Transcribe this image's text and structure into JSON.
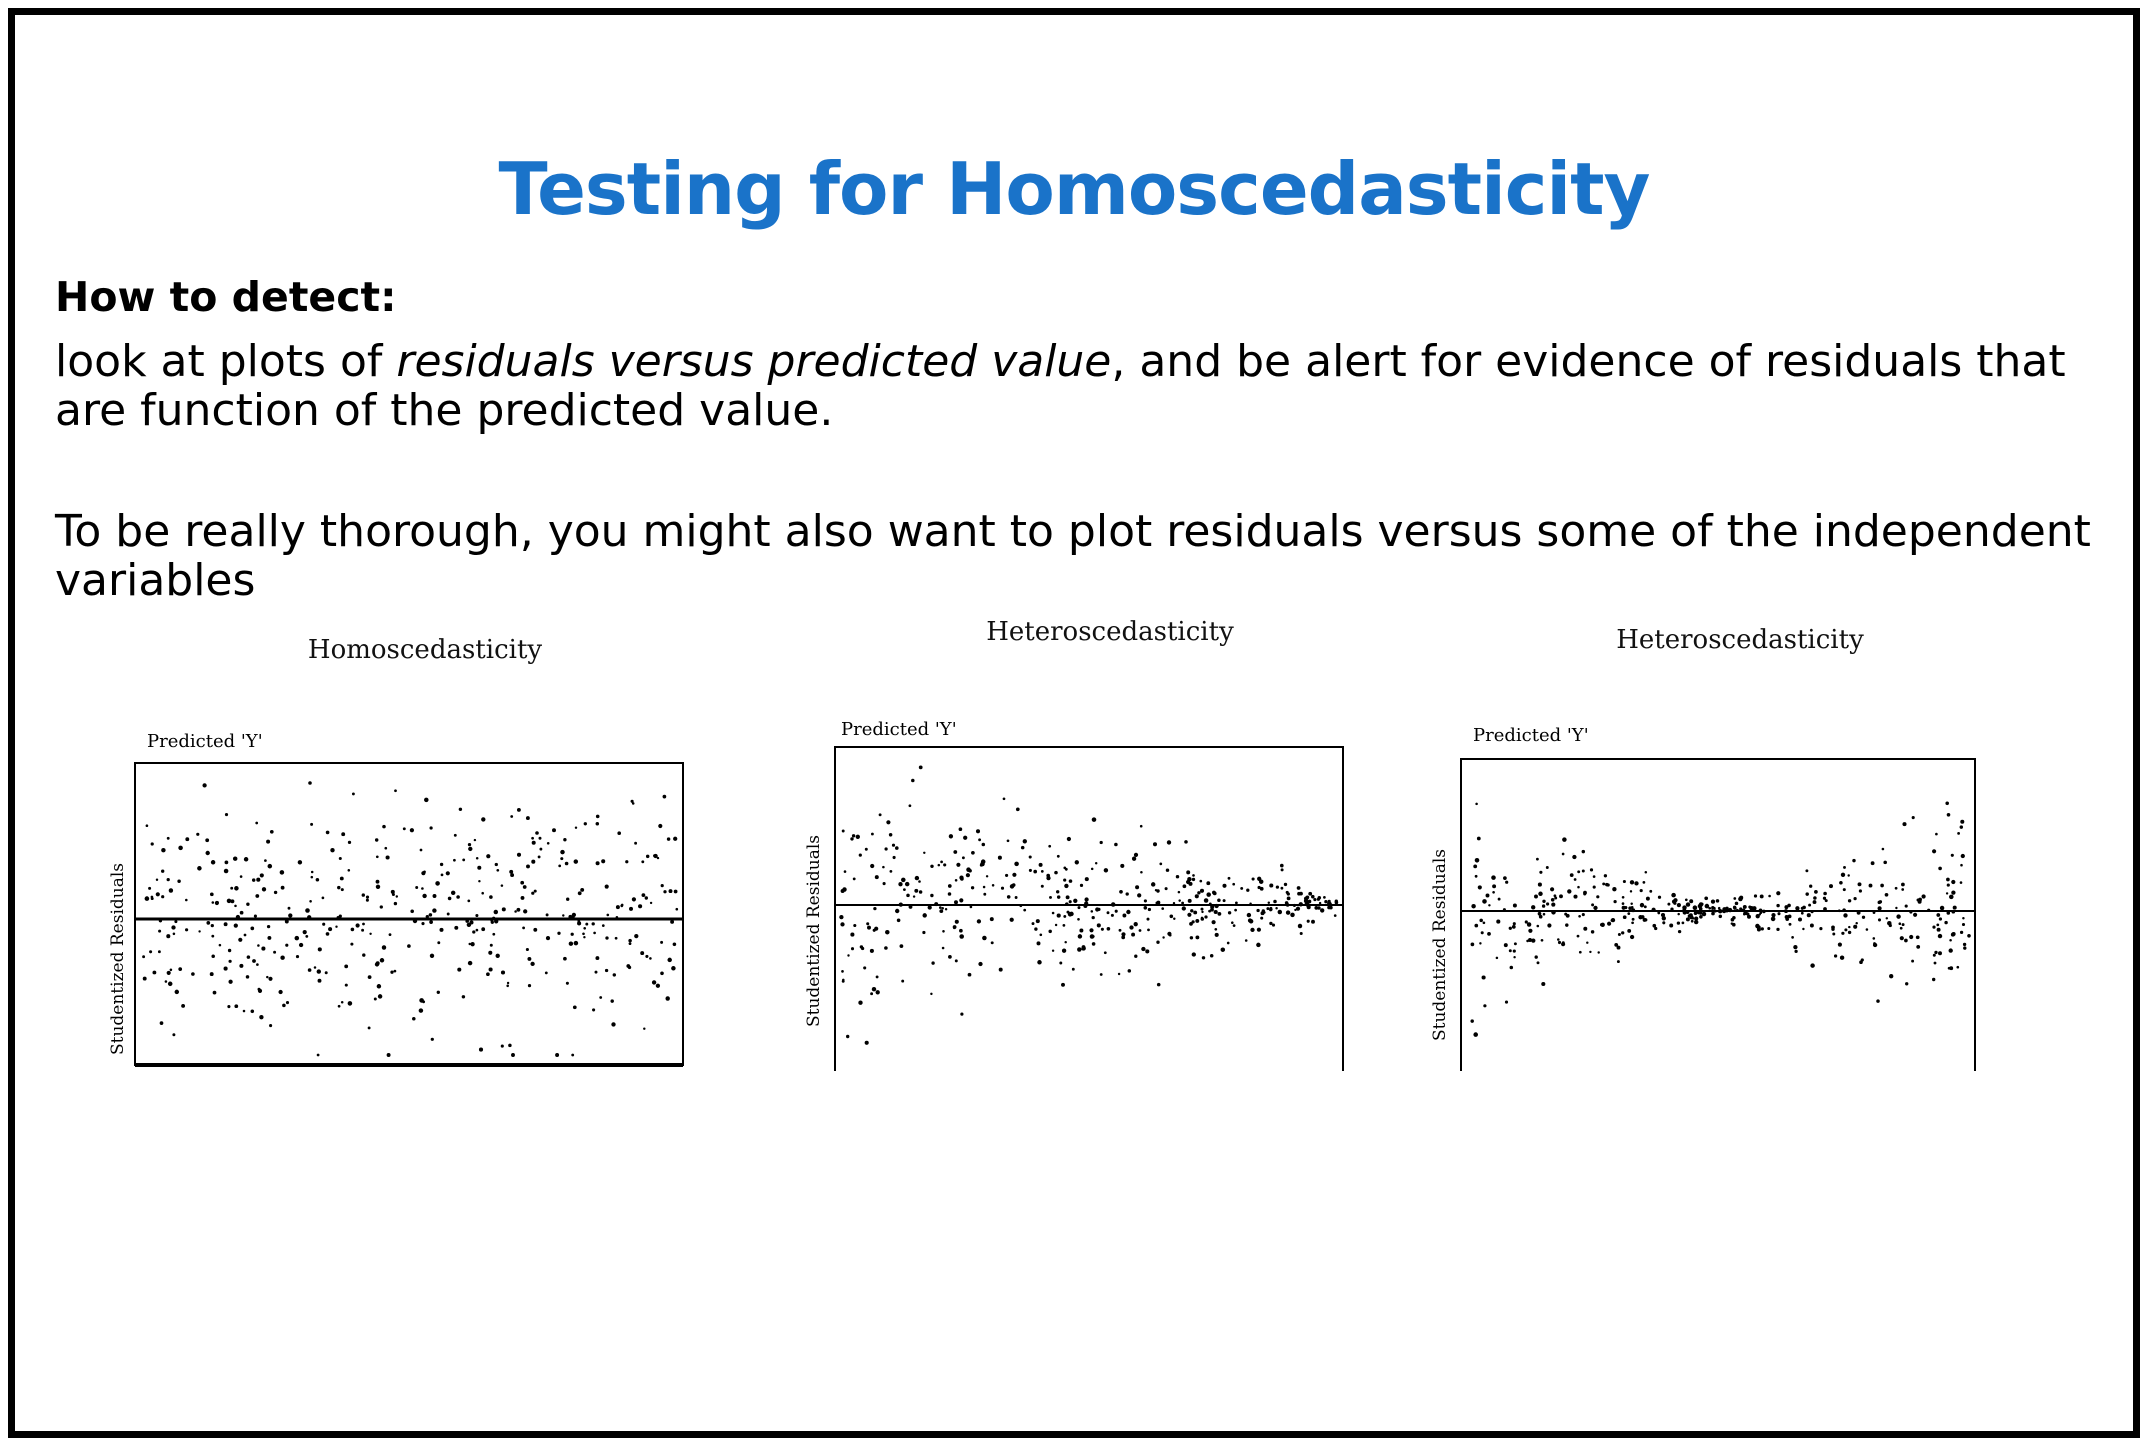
{
  "slide": {
    "title": "Testing for Homoscedasticity",
    "title_color": "#1a73c9",
    "heading": "How to detect:",
    "paragraph1": {
      "prefix": "look at plots of ",
      "emphasis": "residuals versus predicted value",
      "suffix": ", and be alert for evidence of residuals that are  function of the predicted value."
    },
    "paragraph2": "To be really thorough, you might also want to plot residuals versus some of the independent variables"
  },
  "chart_data": [
    {
      "type": "scatter",
      "pattern": "constant-spread",
      "title": "Homoscedasticity",
      "xlabel": "Predicted 'Y'",
      "ylabel": "Studentized Residuals",
      "reference_line": 0,
      "xlim": [
        0,
        1
      ],
      "ylim": [
        -1,
        1
      ],
      "grid": false,
      "frame": "full-box",
      "n_points": 420
    },
    {
      "type": "scatter",
      "pattern": "funnel-narrowing",
      "title": "Heteroscedasticity",
      "xlabel": "Predicted 'Y'",
      "ylabel": "Studentized Residuals",
      "reference_line": 0,
      "xlim": [
        0,
        1
      ],
      "ylim": [
        -1,
        1
      ],
      "grid": false,
      "frame": "open-bottom",
      "n_points": 420
    },
    {
      "type": "scatter",
      "pattern": "bowtie",
      "title": "Heteroscedasticity",
      "xlabel": "Predicted 'Y'",
      "ylabel": "Studentized Residuals",
      "reference_line": 0,
      "xlim": [
        0,
        1
      ],
      "ylim": [
        -1,
        1
      ],
      "grid": false,
      "frame": "open-bottom",
      "n_points": 420
    }
  ]
}
